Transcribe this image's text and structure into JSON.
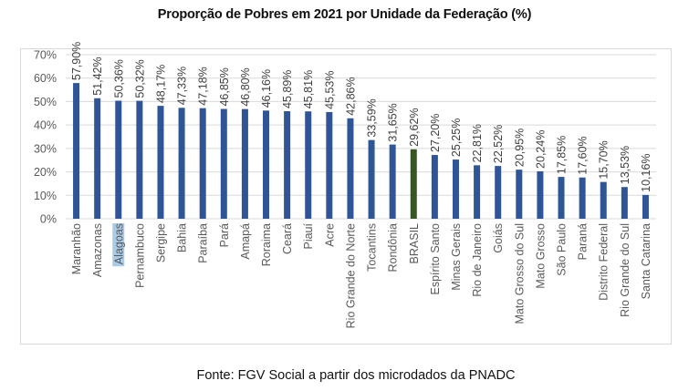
{
  "chart_data": {
    "type": "bar",
    "title": "Proporção de Pobres em 2021 por Unidade da Federação (%)",
    "xlabel": "",
    "ylabel": "",
    "ylim": [
      0,
      70
    ],
    "y_ticks": [
      "0%",
      "10%",
      "20%",
      "30%",
      "40%",
      "50%",
      "60%",
      "70%"
    ],
    "y_tick_values": [
      0,
      10,
      20,
      30,
      40,
      50,
      60,
      70
    ],
    "grid": true,
    "legend": "none",
    "categories": [
      "Maranhão",
      "Amazonas",
      "Alagoas",
      "Pernambuco",
      "Sergipe",
      "Bahia",
      "Paraíba",
      "Pará",
      "Amapá",
      "Roraima",
      "Ceará",
      "Piauí",
      "Acre",
      "Rio Grande do Norte",
      "Tocantins",
      "Rondônia",
      "BRASIL",
      "Espírito Santo",
      "Minas Gerais",
      "Rio de Janeiro",
      "Goiás",
      "Mato Grosso do Sul",
      "Mato Grosso",
      "São Paulo",
      "Paraná",
      "Distrito Federal",
      "Rio Grande do Sul",
      "Santa Catarina"
    ],
    "values": [
      57.9,
      51.42,
      50.36,
      50.32,
      48.17,
      47.33,
      47.18,
      46.85,
      46.8,
      46.16,
      45.89,
      45.81,
      45.53,
      42.86,
      33.59,
      31.65,
      29.62,
      27.2,
      25.25,
      22.81,
      22.52,
      20.95,
      20.24,
      17.85,
      17.6,
      15.7,
      13.53,
      10.16
    ],
    "data_labels": [
      "57,90%",
      "51,42%",
      "50,36%",
      "50,32%",
      "48,17%",
      "47,33%",
      "47,18%",
      "46,85%",
      "46,80%",
      "46,16%",
      "45,89%",
      "45,81%",
      "45,53%",
      "42,86%",
      "33,59%",
      "31,65%",
      "29,62%",
      "27,20%",
      "25,25%",
      "22,81%",
      "22,52%",
      "20,95%",
      "20,24%",
      "17,85%",
      "17,60%",
      "15,70%",
      "13,53%",
      "10,16%"
    ],
    "highlight_category": "BRASIL",
    "selected_label": "Alagoas",
    "colors": {
      "bar": "#2f5597",
      "highlight_bar": "#375623",
      "grid": "#d9d9d9",
      "tick_text": "#595959",
      "data_label_text": "#404040",
      "selection": "#a9cbe8"
    }
  },
  "source": "Fonte: FGV Social a partir dos microdados da PNADC"
}
